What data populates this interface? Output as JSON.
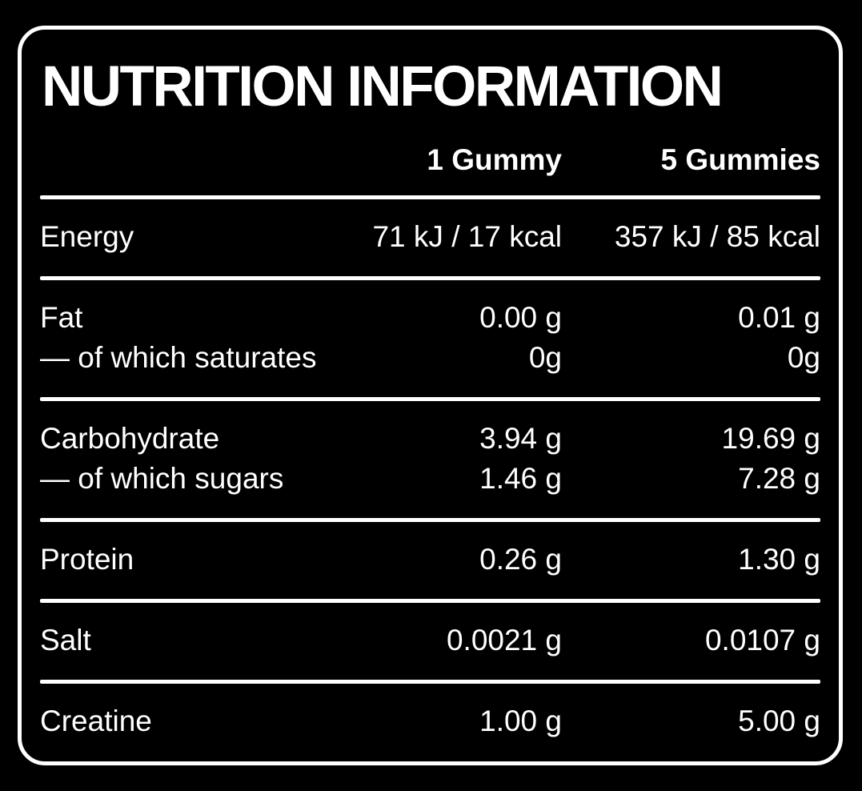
{
  "title": "NUTRITION INFORMATION",
  "header": {
    "col1": "1 Gummy",
    "col2": "5 Gummies"
  },
  "sections": [
    {
      "lines": [
        {
          "label": "Energy",
          "per_gummy": "71 kJ / 17 kcal",
          "per_5_gummies": "357 kJ / 85 kcal"
        }
      ]
    },
    {
      "lines": [
        {
          "label": "Fat",
          "per_gummy": "0.00 g",
          "per_5_gummies": "0.01 g"
        },
        {
          "label": "— of which saturates",
          "per_gummy": "0g",
          "per_5_gummies": "0g"
        }
      ]
    },
    {
      "lines": [
        {
          "label": "Carbohydrate",
          "per_gummy": "3.94 g",
          "per_5_gummies": "19.69 g"
        },
        {
          "label": "— of which sugars",
          "per_gummy": "1.46 g",
          "per_5_gummies": "7.28 g"
        }
      ]
    },
    {
      "lines": [
        {
          "label": "Protein",
          "per_gummy": "0.26 g",
          "per_5_gummies": "1.30 g"
        }
      ]
    },
    {
      "lines": [
        {
          "label": "Salt",
          "per_gummy": "0.0021 g",
          "per_5_gummies": "0.0107 g"
        }
      ]
    },
    {
      "lines": [
        {
          "label": "Creatine",
          "per_gummy": "1.00 g",
          "per_5_gummies": "5.00 g"
        }
      ]
    }
  ],
  "colors": {
    "background": "#000000",
    "text": "#ffffff",
    "border": "#ffffff",
    "divider": "#ffffff"
  }
}
